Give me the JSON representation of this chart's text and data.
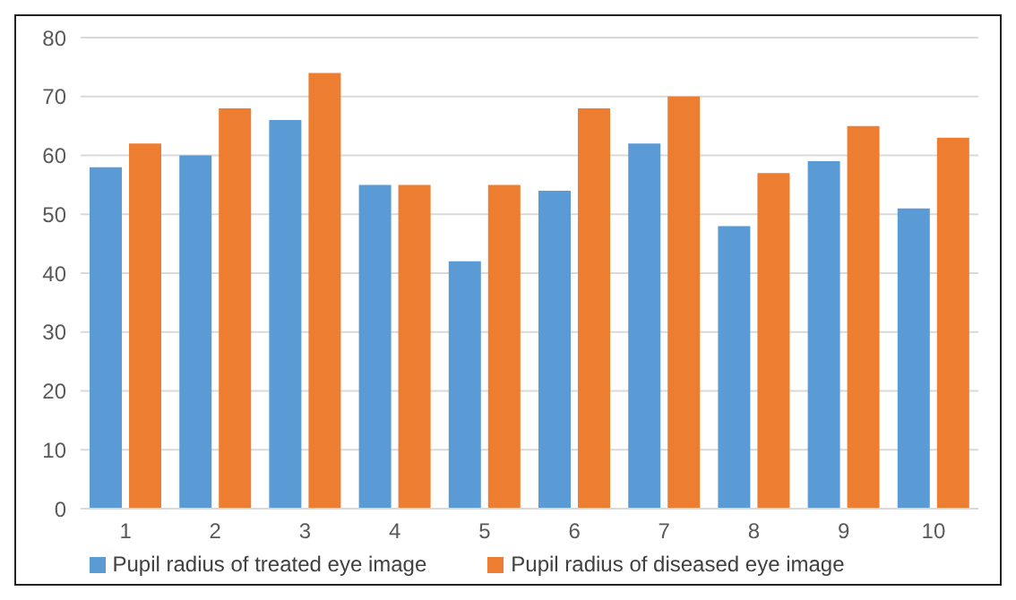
{
  "chart_data": {
    "type": "bar",
    "categories": [
      "1",
      "2",
      "3",
      "4",
      "5",
      "6",
      "7",
      "8",
      "9",
      "10"
    ],
    "series": [
      {
        "name": "Pupil radius of treated eye image",
        "color": "#5b9bd5",
        "values": [
          58,
          60,
          66,
          55,
          42,
          54,
          62,
          48,
          59,
          51
        ]
      },
      {
        "name": "Pupil radius of diseased eye image",
        "color": "#ed7d31",
        "values": [
          62,
          68,
          74,
          55,
          55,
          68,
          70,
          57,
          65,
          63
        ]
      }
    ],
    "ylim": [
      0,
      80
    ],
    "yticks": [
      0,
      10,
      20,
      30,
      40,
      50,
      60,
      70,
      80
    ],
    "grid": "y",
    "legend": "bottom"
  }
}
